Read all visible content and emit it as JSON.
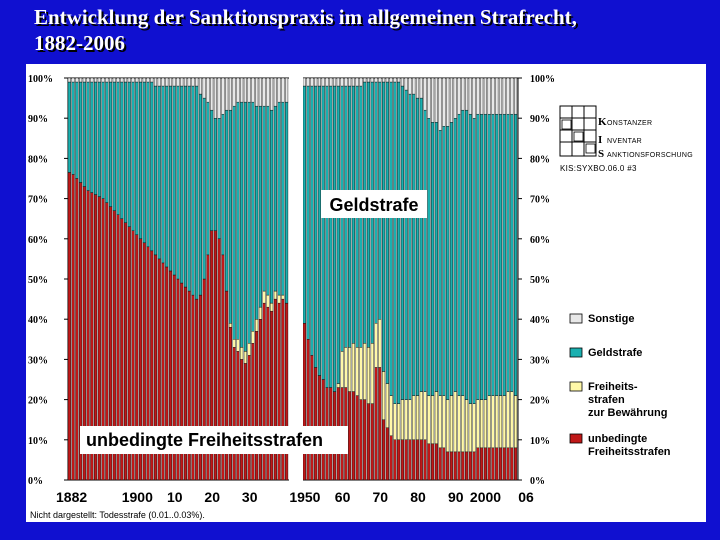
{
  "slide": {
    "title_line1": "Entwicklung der Sanktionspraxis im allgemeinen Strafrecht,",
    "title_line2": "1882-2006"
  },
  "chart_data": {
    "type": "bar",
    "stacked": true,
    "x_tick_labels": [
      "1882",
      "1900",
      "10",
      "20",
      "30",
      "1950",
      "60",
      "70",
      "80",
      "90",
      "2000",
      "06"
    ],
    "y_tick_labels": [
      "0%",
      "10%",
      "20%",
      "30%",
      "40%",
      "50%",
      "60%",
      "70%",
      "80%",
      "90%",
      "100%"
    ],
    "ylim": [
      0,
      100
    ],
    "legend_position": "right",
    "series": [
      {
        "name": "unbedingte Freiheitsstrafen",
        "color": "#c01818"
      },
      {
        "name": "Freiheits- strafen zur Bewährung",
        "color": "#fff8a8"
      },
      {
        "name": "Geldstrafe",
        "color": "#1ab0b0"
      },
      {
        "name": "Sonstige",
        "color": "#e8e8e8"
      }
    ],
    "legend": [
      {
        "key": "sonstige",
        "lines": [
          "Sonstige"
        ],
        "color": "#e8e8e8"
      },
      {
        "key": "geldstrafe",
        "lines": [
          "Geldstrafe"
        ],
        "color": "#1ab0b0"
      },
      {
        "key": "bewaehrung",
        "lines": [
          "Freiheits-",
          "strafen",
          "zur Bewährung"
        ],
        "color": "#fff8a8"
      },
      {
        "key": "unbedingt",
        "lines": [
          "unbedingte",
          "Freiheitsstrafen"
        ],
        "color": "#c01818"
      }
    ],
    "annotations": {
      "geldstrafe_label": "Geldstrafe",
      "freiheitsstrafen_label": "unbedingte Freiheitsstrafen"
    },
    "note": "Nicht dargestellt: Todesstrafe (0.01..0.03%).",
    "periods": [
      {
        "years": [
          1882,
          1883,
          1884,
          1885,
          1886,
          1887,
          1888,
          1889,
          1890,
          1891,
          1892,
          1893,
          1894,
          1895,
          1896,
          1897,
          1898,
          1899,
          1900,
          1901,
          1902,
          1903,
          1904,
          1905,
          1906,
          1907,
          1908,
          1909,
          1910,
          1911,
          1912,
          1913,
          1914,
          1915,
          1916,
          1917,
          1918,
          1919,
          1920,
          1921,
          1922,
          1923,
          1924,
          1925,
          1926,
          1927,
          1928,
          1929,
          1930,
          1931,
          1932,
          1933,
          1934,
          1935,
          1936,
          1937,
          1938,
          1939,
          1940
        ],
        "unbedingt": [
          76.5,
          76,
          75,
          74,
          73,
          72,
          71.5,
          71,
          70.5,
          70,
          69,
          68,
          67,
          66,
          65,
          64,
          63,
          62,
          61,
          60,
          59,
          58,
          57,
          56,
          55,
          54,
          53,
          52,
          51,
          50,
          49,
          48,
          47,
          46,
          45,
          46,
          50,
          56,
          62,
          62,
          60,
          56,
          47,
          38,
          33,
          32,
          30,
          29,
          31,
          34,
          37,
          40,
          44,
          43,
          42,
          45,
          44,
          45,
          44
        ],
        "bewaehrung": [
          0,
          0,
          0,
          0,
          0,
          0,
          0,
          0,
          0,
          0,
          0,
          0,
          0,
          0,
          0,
          0,
          0,
          0,
          0,
          0,
          0,
          0,
          0,
          0,
          0,
          0,
          0,
          0,
          0,
          0,
          0,
          0,
          0,
          0,
          0,
          0,
          0,
          0,
          0,
          0,
          0,
          0,
          0,
          1,
          2,
          3,
          3,
          3,
          3,
          3,
          3,
          3,
          3,
          3,
          2,
          2,
          2,
          1,
          0
        ],
        "geldstrafe": [
          22.5,
          23,
          24,
          25,
          26,
          27,
          27.5,
          28,
          28.5,
          29,
          30,
          31,
          32,
          33,
          34,
          35,
          36,
          37,
          38,
          39,
          40,
          41,
          42,
          42,
          43,
          44,
          45,
          46,
          47,
          48,
          49,
          50,
          51,
          52,
          53,
          50,
          45,
          38,
          30,
          28,
          30,
          35,
          45,
          53,
          58,
          59,
          61,
          62,
          60,
          57,
          53,
          50,
          46,
          47,
          48,
          46,
          48,
          48,
          50
        ],
        "sonstige": [
          1,
          1,
          1,
          1,
          1,
          1,
          1,
          1,
          1,
          1,
          1,
          1,
          1,
          1,
          1,
          1,
          1,
          1,
          1,
          1,
          1,
          1,
          1,
          2,
          2,
          2,
          2,
          2,
          2,
          2,
          2,
          2,
          2,
          2,
          2,
          4,
          5,
          6,
          8,
          10,
          10,
          9,
          8,
          8,
          7,
          6,
          6,
          6,
          6,
          6,
          7,
          7,
          7,
          7,
          8,
          7,
          6,
          6,
          6
        ]
      },
      {
        "years": [
          1950,
          1951,
          1952,
          1953,
          1954,
          1955,
          1956,
          1957,
          1958,
          1959,
          1960,
          1961,
          1962,
          1963,
          1964,
          1965,
          1966,
          1967,
          1968,
          1969,
          1970,
          1971,
          1972,
          1973,
          1974,
          1975,
          1976,
          1977,
          1978,
          1979,
          1980,
          1981,
          1982,
          1983,
          1984,
          1985,
          1986,
          1987,
          1988,
          1989,
          1990,
          1991,
          1992,
          1993,
          1994,
          1995,
          1996,
          1997,
          1998,
          1999,
          2000,
          2001,
          2002,
          2003,
          2004,
          2005,
          2006
        ],
        "unbedingt": [
          39,
          35,
          31,
          28,
          26,
          25,
          23,
          23,
          22,
          23,
          23,
          23,
          22,
          22,
          21,
          20,
          20,
          19,
          19,
          28,
          28,
          15,
          13,
          11,
          10,
          10,
          10,
          10,
          10,
          10,
          10,
          10,
          10,
          9,
          9,
          9,
          8,
          8,
          7,
          7,
          7,
          7,
          7,
          7,
          7,
          7,
          8,
          8,
          8,
          8,
          8,
          8,
          8,
          8,
          8,
          8,
          8
        ],
        "bewaehrung": [
          0,
          0,
          0,
          0,
          0,
          0,
          0,
          0,
          0,
          1,
          9,
          10,
          11,
          12,
          12,
          13,
          14,
          14,
          15,
          11,
          12,
          12,
          11,
          10,
          9,
          9,
          10,
          10,
          10,
          11,
          11,
          12,
          12,
          12,
          12,
          13,
          13,
          13,
          13,
          14,
          15,
          14,
          14,
          13,
          12,
          12,
          12,
          12,
          12,
          13,
          13,
          13,
          13,
          13,
          14,
          14,
          13
        ],
        "geldstrafe": [
          59,
          63,
          67,
          70,
          72,
          73,
          75,
          75,
          76,
          74,
          66,
          65,
          65,
          64,
          65,
          65,
          65,
          66,
          65,
          60,
          59,
          72,
          75,
          78,
          80,
          80,
          78,
          77,
          76,
          75,
          74,
          73,
          70,
          69,
          68,
          67,
          66,
          67,
          68,
          68,
          68,
          70,
          71,
          72,
          72,
          71,
          71,
          71,
          71,
          70,
          70,
          70,
          70,
          70,
          69,
          69,
          70
        ],
        "sonstige": [
          2,
          2,
          2,
          2,
          2,
          2,
          2,
          2,
          2,
          2,
          2,
          2,
          2,
          2,
          2,
          2,
          1,
          1,
          1,
          1,
          1,
          1,
          1,
          1,
          1,
          1,
          2,
          3,
          4,
          4,
          5,
          5,
          8,
          10,
          11,
          11,
          13,
          12,
          12,
          11,
          10,
          9,
          8,
          8,
          9,
          10,
          9,
          9,
          9,
          9,
          9,
          9,
          9,
          9,
          9,
          9,
          9
        ]
      }
    ]
  },
  "logo": {
    "line1": "ONSTANZER",
    "line2": "NVENTAR",
    "line3": "ANKTIONSFORSCHUNG",
    "initial1": "K",
    "initial2": "I",
    "initial3": "S",
    "code": "KIS:SYXBO.06.0 #3"
  }
}
